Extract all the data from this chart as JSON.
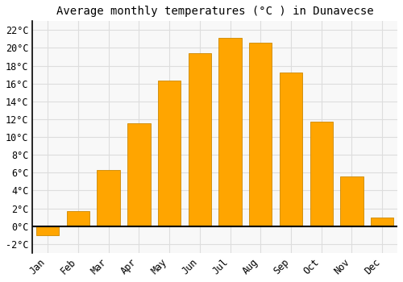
{
  "title": "Average monthly temperatures (°C ) in Dunavecse",
  "months": [
    "Jan",
    "Feb",
    "Mar",
    "Apr",
    "May",
    "Jun",
    "Jul",
    "Aug",
    "Sep",
    "Oct",
    "Nov",
    "Dec"
  ],
  "values": [
    -1.0,
    1.7,
    6.3,
    11.5,
    16.3,
    19.4,
    21.1,
    20.6,
    17.2,
    11.7,
    5.6,
    1.0
  ],
  "bar_color": "#FFA500",
  "bar_edge_color": "#CC8800",
  "background_color": "#FFFFFF",
  "plot_bg_color": "#F8F8F8",
  "grid_color": "#DDDDDD",
  "ylim": [
    -3,
    23
  ],
  "yticks": [
    -2,
    0,
    2,
    4,
    6,
    8,
    10,
    12,
    14,
    16,
    18,
    20,
    22
  ],
  "title_fontsize": 10,
  "tick_fontsize": 8.5,
  "title_font": "monospace"
}
